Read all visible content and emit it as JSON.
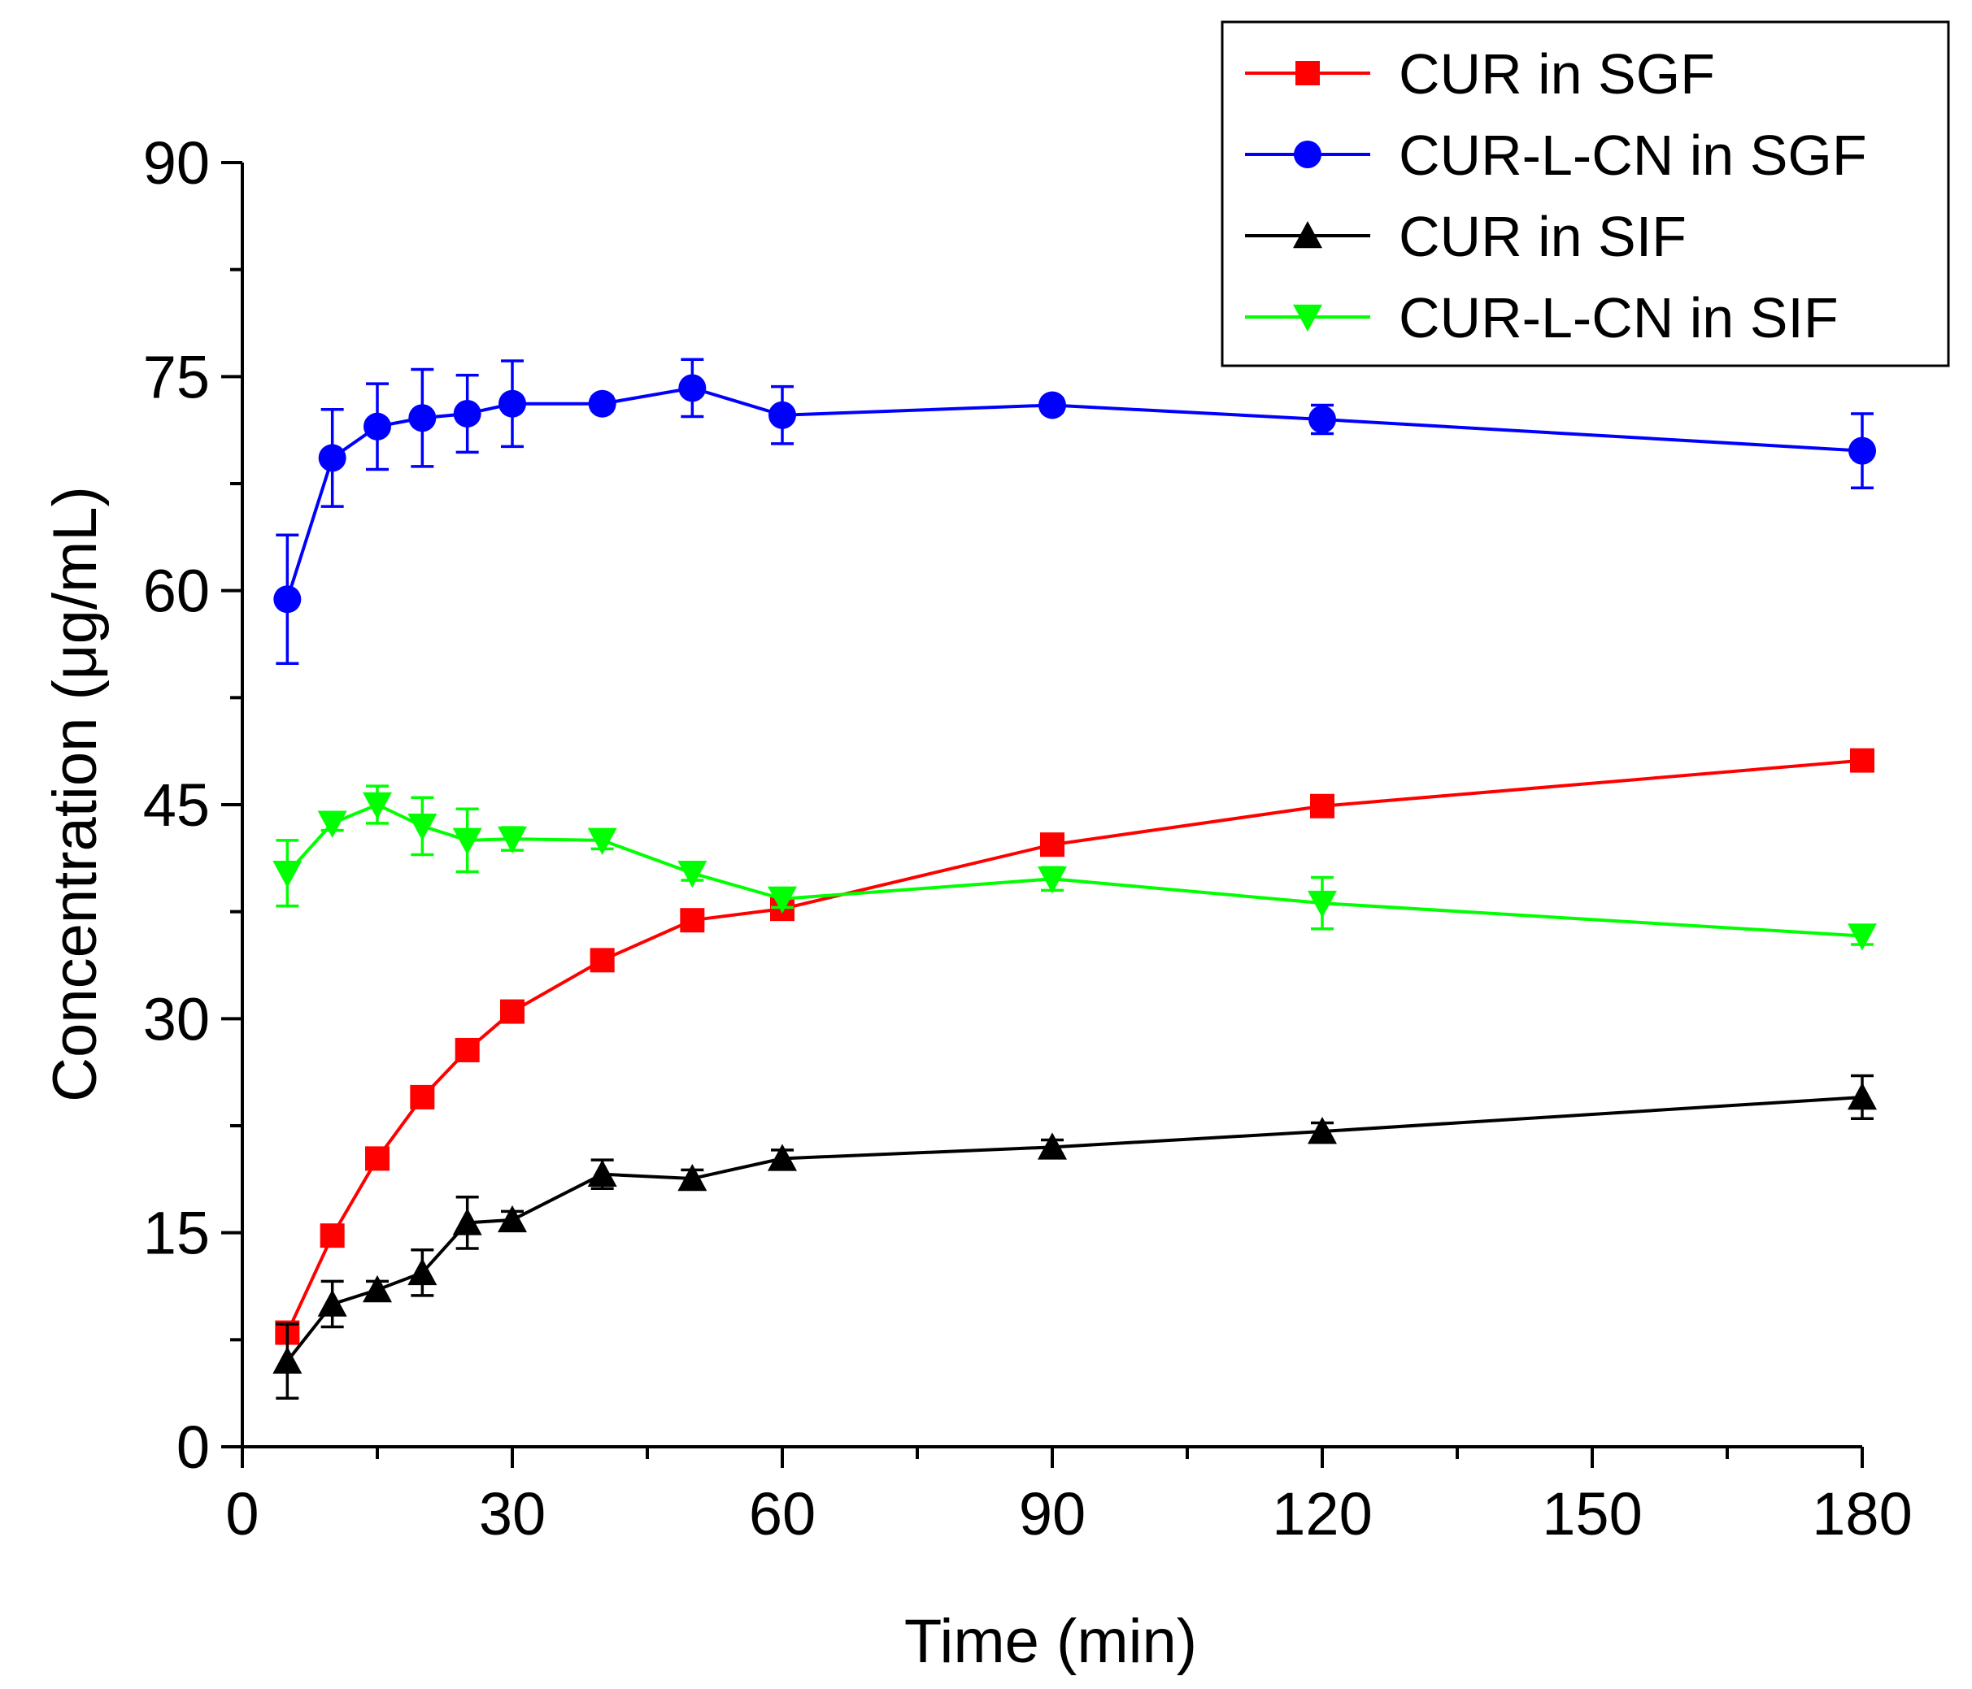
{
  "chart_data": {
    "type": "line",
    "title": "",
    "xlabel": "Time (min)",
    "ylabel": "Concentration (μg/mL)",
    "xlim": [
      0,
      180
    ],
    "ylim": [
      0,
      90
    ],
    "xticks": [
      0,
      30,
      60,
      90,
      120,
      150,
      180
    ],
    "yticks": [
      0,
      15,
      30,
      45,
      60,
      75,
      90
    ],
    "xtick_labels": [
      "0",
      "30",
      "60",
      "90",
      "120",
      "150",
      "180"
    ],
    "ytick_labels": [
      "0",
      "15",
      "30",
      "45",
      "60",
      "75",
      "90"
    ],
    "legend_position": "top-right",
    "grid": false,
    "series": [
      {
        "name": "CUR in SGF",
        "color": "#ff0000",
        "marker": "square",
        "x": [
          5,
          10,
          15,
          20,
          25,
          30,
          40,
          50,
          60,
          90,
          120,
          180
        ],
        "y": [
          8.0,
          14.8,
          20.2,
          24.5,
          27.8,
          30.5,
          34.1,
          36.9,
          37.7,
          42.2,
          44.9,
          48.1
        ],
        "err": [
          0.5,
          0.6,
          0.6,
          0.6,
          0.6,
          0.6,
          0.6,
          0.5,
          0.6,
          0.5,
          0.5,
          0.6
        ]
      },
      {
        "name": "CUR-L-CN in SGF",
        "color": "#0000ff",
        "marker": "circle",
        "x": [
          5,
          10,
          15,
          20,
          25,
          30,
          40,
          50,
          60,
          90,
          120,
          180
        ],
        "y": [
          59.4,
          69.3,
          71.5,
          72.1,
          72.4,
          73.1,
          73.1,
          74.2,
          72.3,
          73.0,
          72.0,
          69.8
        ],
        "err": [
          4.5,
          3.4,
          3.0,
          3.4,
          2.7,
          3.0,
          0.5,
          2.0,
          2.0,
          0.5,
          1.0,
          2.6
        ]
      },
      {
        "name": "CUR in SIF",
        "color": "#000000",
        "marker": "triangle-up",
        "x": [
          5,
          10,
          15,
          20,
          25,
          30,
          40,
          50,
          60,
          90,
          120,
          180
        ],
        "y": [
          6.0,
          10.0,
          11.0,
          12.2,
          15.7,
          15.9,
          19.1,
          18.8,
          20.2,
          21.0,
          22.1,
          24.5
        ],
        "err": [
          2.6,
          1.6,
          0.6,
          1.6,
          1.8,
          0.6,
          1.0,
          0.6,
          0.6,
          0.5,
          0.6,
          1.5
        ]
      },
      {
        "name": "CUR-L-CN in SIF",
        "color": "#00ff00",
        "marker": "triangle-down",
        "x": [
          5,
          10,
          15,
          20,
          25,
          30,
          40,
          50,
          60,
          90,
          120,
          180
        ],
        "y": [
          40.2,
          43.7,
          45.0,
          43.5,
          42.5,
          42.6,
          42.5,
          40.2,
          38.4,
          39.8,
          38.1,
          35.8
        ],
        "err": [
          2.3,
          0.5,
          1.3,
          2.0,
          2.2,
          0.8,
          0.6,
          0.5,
          0.6,
          0.8,
          1.8,
          0.6
        ]
      }
    ]
  }
}
